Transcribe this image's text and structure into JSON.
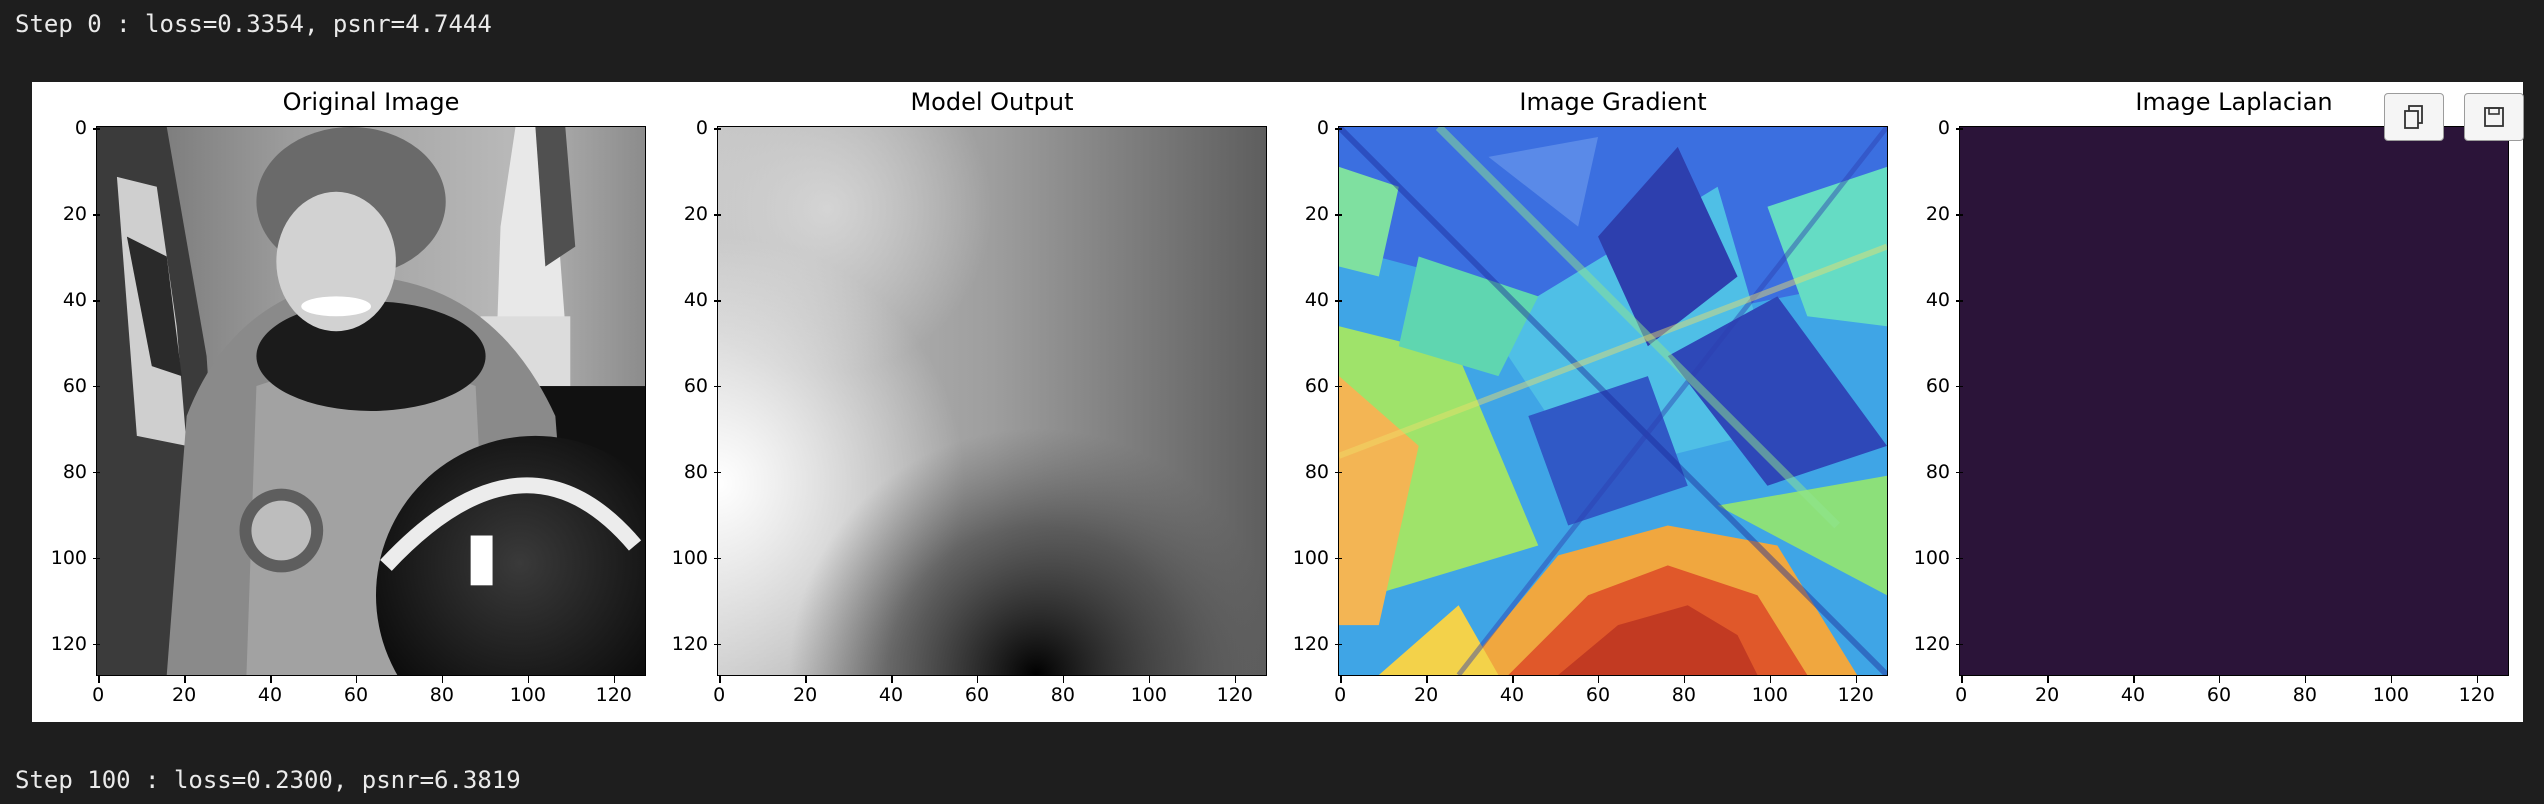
{
  "log": {
    "step0": "Step 0 : loss=0.3354, psnr=4.7444",
    "step100": "Step 100 : loss=0.2300, psnr=6.3819"
  },
  "toolbar": {
    "copy_icon": "copy-icon",
    "save_icon": "save-icon"
  },
  "figure": {
    "panels": [
      {
        "title": "Original Image",
        "colormap": "gray"
      },
      {
        "title": "Model Output",
        "colormap": "gray"
      },
      {
        "title": "Image Gradient",
        "colormap": "jet"
      },
      {
        "title": "Image Laplacian",
        "colormap": "viridis",
        "fill": "#2b1439"
      }
    ],
    "yticks": [
      "0",
      "20",
      "40",
      "60",
      "80",
      "100",
      "120"
    ],
    "xticks": [
      "0",
      "20",
      "40",
      "60",
      "80",
      "100",
      "120"
    ]
  },
  "colors": {
    "background": "#1e1e1e",
    "text": "#eaeaea"
  }
}
